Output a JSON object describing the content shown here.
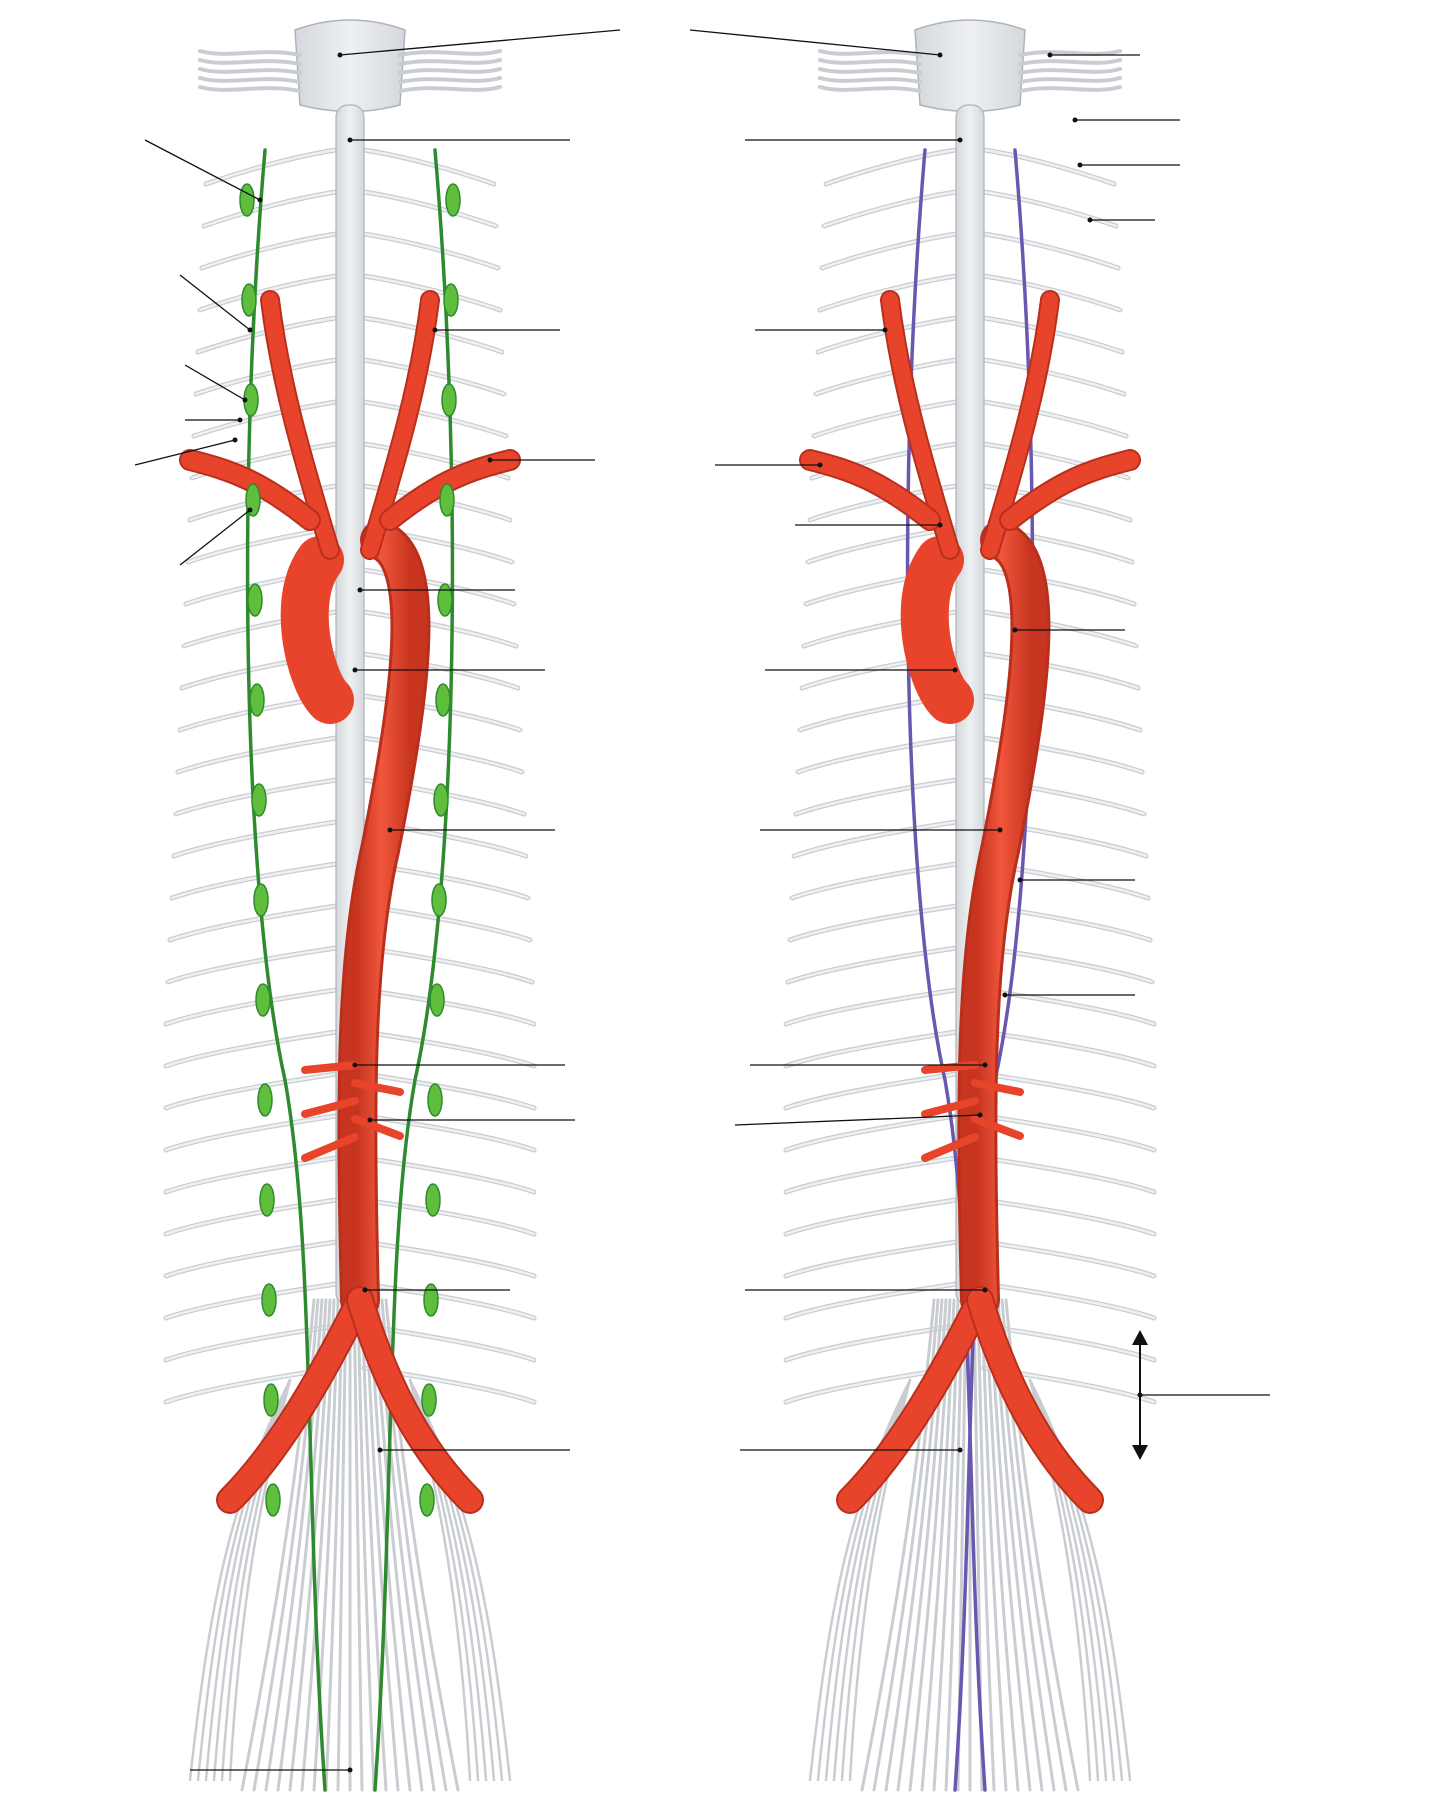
{
  "colors": {
    "background": "#ffffff",
    "bone_fill": "#e7e9ec",
    "bone_stroke": "#aeb3b9",
    "nerve_gray": "#c9cdd2",
    "artery": "#e8432b",
    "artery_dark": "#b8301d",
    "sympathetic": "#2f8a2f",
    "sympathetic_light": "#5fbf3d",
    "parasympathetic": "#6b57b0",
    "leader_line": "#111111"
  },
  "panels": [
    {
      "id": "sympathetic",
      "chain_color_key": "sympathetic"
    },
    {
      "id": "parasympathetic",
      "chain_color_key": "parasympathetic"
    }
  ],
  "icons": {
    "direction_arrow": "double-vertical-arrow-icon"
  }
}
